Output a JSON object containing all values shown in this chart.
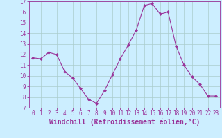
{
  "x": [
    0,
    1,
    2,
    3,
    4,
    5,
    6,
    7,
    8,
    9,
    10,
    11,
    12,
    13,
    14,
    15,
    16,
    17,
    18,
    19,
    20,
    21,
    22,
    23
  ],
  "y": [
    11.7,
    11.6,
    12.2,
    12.0,
    10.4,
    9.8,
    8.8,
    7.8,
    7.4,
    8.6,
    10.1,
    11.6,
    12.9,
    14.3,
    16.6,
    16.8,
    15.8,
    16.0,
    12.8,
    11.0,
    9.9,
    9.2,
    8.1,
    8.1
  ],
  "line_color": "#993399",
  "marker": "D",
  "marker_size": 2,
  "bg_color": "#cceeff",
  "grid_color": "#aacccc",
  "xlabel": "Windchill (Refroidissement éolien,°C)",
  "xlim": [
    -0.5,
    23.5
  ],
  "ylim": [
    7,
    17
  ],
  "yticks": [
    7,
    8,
    9,
    10,
    11,
    12,
    13,
    14,
    15,
    16,
    17
  ],
  "xticks": [
    0,
    1,
    2,
    3,
    4,
    5,
    6,
    7,
    8,
    9,
    10,
    11,
    12,
    13,
    14,
    15,
    16,
    17,
    18,
    19,
    20,
    21,
    22,
    23
  ],
  "tick_label_fontsize": 5.5,
  "xlabel_fontsize": 7.0
}
